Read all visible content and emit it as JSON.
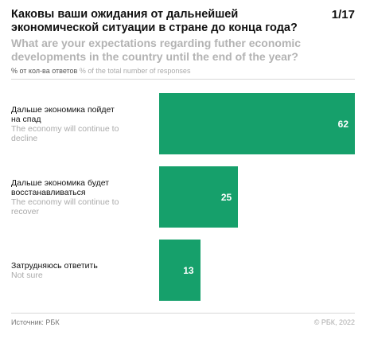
{
  "header": {
    "title_ru": "Каковы ваши ожидания от дальнейшей экономической ситуации в стране до конца года?",
    "title_en": "What are your expectations regarding futher economic developments in the country until the end of the year?",
    "page": "1/17",
    "unit_ru": "% от кол-ва ответов",
    "unit_en": "% of the total number of responses"
  },
  "chart_data": {
    "type": "bar",
    "orientation": "horizontal",
    "categories": [
      {
        "ru": "Дальше экономика пойдет на спад",
        "en": "The economy will continue to decline"
      },
      {
        "ru": "Дальше экономика будет восстанавливаться",
        "en": "The economy will continue to recover"
      },
      {
        "ru": "Затрудняюсь ответить",
        "en": "Not sure"
      }
    ],
    "values": [
      62,
      25,
      13
    ],
    "bar_color": "#16a06b",
    "xlim": [
      0,
      62
    ],
    "grid": false,
    "legend": "none"
  },
  "footer": {
    "source": "Источник: РБК",
    "copyright": "© РБК, 2022"
  }
}
